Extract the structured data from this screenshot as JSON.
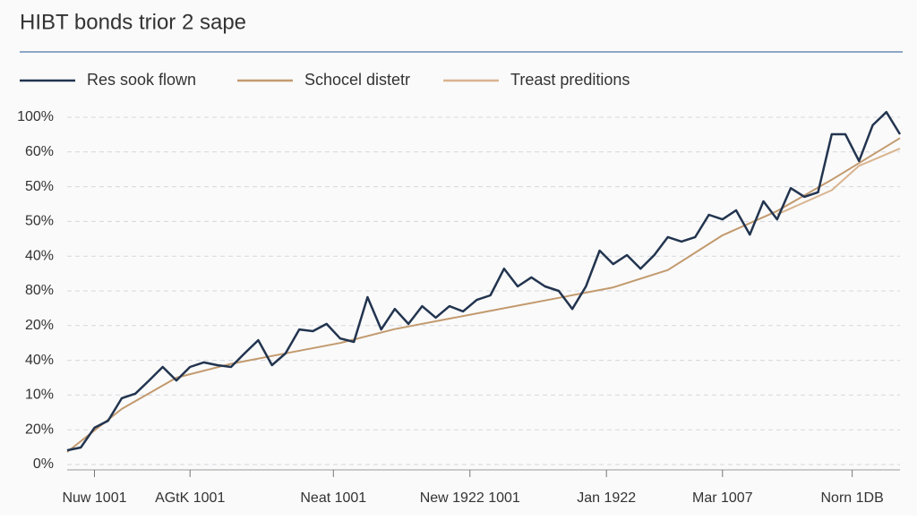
{
  "chart_data": {
    "type": "line",
    "title": "HIBT bonds trior 2 sape",
    "x": [
      0,
      1,
      2,
      3,
      4,
      5,
      6,
      7,
      8,
      9,
      10,
      11,
      12,
      13,
      14,
      15,
      16,
      17,
      18,
      19,
      20,
      21,
      22,
      23,
      24,
      25,
      26,
      27,
      28,
      29,
      30,
      31,
      32,
      33,
      34,
      35,
      36,
      37,
      38,
      39,
      40,
      41,
      42,
      43,
      44,
      45,
      46,
      47,
      48,
      49,
      50,
      51,
      52,
      53,
      54,
      55,
      56,
      57,
      58,
      59,
      60,
      61
    ],
    "xlim": [
      0,
      61
    ],
    "xticks": [
      {
        "value": 2,
        "label": "Nuw 1001"
      },
      {
        "value": 9,
        "label": "AGtK 1001"
      },
      {
        "value": 19.5,
        "label": "Neat 1001"
      },
      {
        "value": 29.5,
        "label": "New 1922 1001"
      },
      {
        "value": 39.5,
        "label": "Jan 1922"
      },
      {
        "value": 48,
        "label": "Mar 1007"
      },
      {
        "value": 57.5,
        "label": "Norn 1DB"
      }
    ],
    "ylim": [
      0,
      10.5
    ],
    "yticks": [
      {
        "value": 0,
        "label": "0%"
      },
      {
        "value": 1,
        "label": "20%"
      },
      {
        "value": 2,
        "label": "10%"
      },
      {
        "value": 3,
        "label": "40%"
      },
      {
        "value": 4,
        "label": "20%"
      },
      {
        "value": 5,
        "label": "80%"
      },
      {
        "value": 6,
        "label": "40%"
      },
      {
        "value": 7,
        "label": "50%"
      },
      {
        "value": 8,
        "label": "50%"
      },
      {
        "value": 9,
        "label": "60%"
      },
      {
        "value": 10,
        "label": "100%"
      }
    ],
    "grid": true,
    "series": [
      {
        "name": "Res sook flown",
        "color": "#22344f",
        "values": [
          0.41,
          0.49,
          1.06,
          1.26,
          1.91,
          2.04,
          2.42,
          2.81,
          2.42,
          2.81,
          2.94,
          2.86,
          2.81,
          3.2,
          3.58,
          2.86,
          3.2,
          3.89,
          3.84,
          4.05,
          3.63,
          3.53,
          4.82,
          3.89,
          4.48,
          4.05,
          4.56,
          4.23,
          4.56,
          4.41,
          4.74,
          4.87,
          5.64,
          5.13,
          5.39,
          5.13,
          5.0,
          4.48,
          5.13,
          6.16,
          5.77,
          6.03,
          5.64,
          6.03,
          6.55,
          6.42,
          6.55,
          7.19,
          7.06,
          7.32,
          6.62,
          7.58,
          7.06,
          7.96,
          7.71,
          7.84,
          9.51,
          9.51,
          8.74,
          9.77,
          10.15,
          9.51
        ]
      },
      {
        "name": "Schocel distetr",
        "color": "#c29a6e",
        "x": [
          0,
          4,
          8,
          12,
          16,
          20,
          24,
          28,
          32,
          36,
          40,
          44,
          48,
          52,
          56,
          61
        ],
        "values": [
          0.36,
          1.6,
          2.5,
          2.9,
          3.2,
          3.5,
          3.9,
          4.2,
          4.5,
          4.8,
          5.1,
          5.6,
          6.6,
          7.3,
          8.2,
          9.4
        ]
      },
      {
        "name": "Treast preditions",
        "color": "#d9b48f",
        "x": [
          52,
          56,
          58,
          61
        ],
        "values": [
          7.2,
          7.9,
          8.6,
          9.1
        ]
      }
    ]
  }
}
